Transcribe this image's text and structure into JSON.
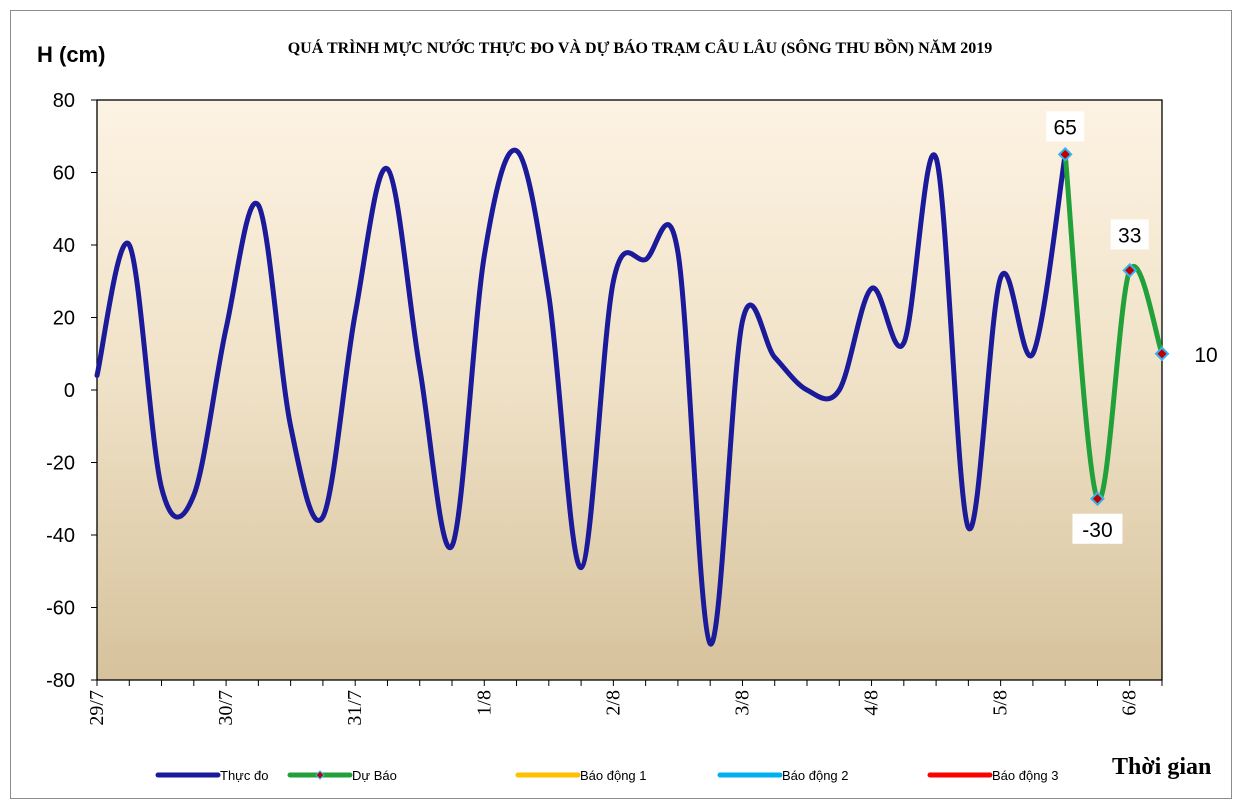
{
  "chart_data": {
    "type": "line",
    "title": "QUÁ TRÌNH MỰC NƯỚC THỰC ĐO VÀ DỰ BÁO TRẠM CÂU LÂU (SÔNG THU BỒN) NĂM  2019",
    "ylabel": "H (cm)",
    "xlabel": "Thời gian",
    "ylim": [
      -80,
      80
    ],
    "yticks": [
      80,
      60,
      40,
      20,
      0,
      -20,
      -40,
      -60,
      -80
    ],
    "x_tick_labels": [
      "29/7",
      "30/7",
      "31/7",
      "1/8",
      "2/8",
      "3/8",
      "4/8",
      "5/8",
      "6/8"
    ],
    "x_unit": "3 hours per step; day labels at 00h",
    "x_range": [
      0,
      66
    ],
    "grid": false,
    "legend_position": "bottom",
    "series": [
      {
        "name": "Thực đo",
        "color": "#1a1a9a",
        "x": [
          0,
          2,
          4,
          6,
          8,
          10,
          12,
          14,
          16,
          18,
          20,
          22,
          24,
          26,
          28,
          30,
          32,
          34,
          36,
          38,
          40,
          42,
          44,
          46,
          48,
          50,
          52,
          54,
          56,
          58,
          60,
          62,
          64
        ],
        "values": [
          4,
          40,
          -27,
          -29,
          17,
          51,
          -10,
          -35,
          21,
          61,
          6,
          -43,
          37,
          66,
          26,
          -49,
          30,
          36,
          38,
          -70,
          19,
          9,
          0,
          0,
          28,
          13,
          64,
          -38,
          31,
          10,
          65,
          null,
          null
        ]
      },
      {
        "name": "Dự Báo",
        "color": "#22a03a",
        "x": [
          60,
          62,
          64,
          66
        ],
        "values": [
          65,
          -30,
          33,
          10
        ],
        "data_labels": [
          "65",
          "-30",
          "33",
          "10"
        ]
      },
      {
        "name": "Báo động  1",
        "color": "#ffc000",
        "values": []
      },
      {
        "name": "Báo động  2",
        "color": "#00b0f0",
        "values": []
      },
      {
        "name": "Báo động  3",
        "color": "#ff0000",
        "values": []
      }
    ]
  }
}
